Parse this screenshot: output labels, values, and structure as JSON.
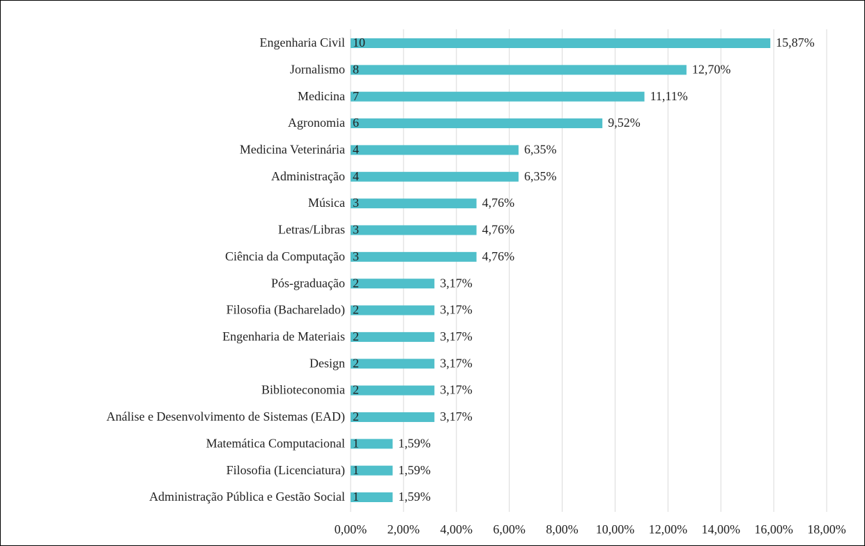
{
  "chart_data": {
    "type": "bar",
    "orientation": "horizontal",
    "categories": [
      "Engenharia Civil",
      "Jornalismo",
      "Medicina",
      "Agronomia",
      "Medicina Veterinária",
      "Administração",
      "Música",
      "Letras/Libras",
      "Ciência da Computação",
      "Pós-graduação",
      "Filosofia (Bacharelado)",
      "Engenharia de Materiais",
      "Design",
      "Biblioteconomia",
      "Análise e Desenvolvimento de Sistemas (EAD)",
      "Matemática Computacional",
      "Filosofia (Licenciatura)",
      "Administração Pública e Gestão Social"
    ],
    "values": [
      15.87,
      12.7,
      11.11,
      9.52,
      6.35,
      6.35,
      4.76,
      4.76,
      4.76,
      3.17,
      3.17,
      3.17,
      3.17,
      3.17,
      3.17,
      1.59,
      1.59,
      1.59
    ],
    "value_labels": [
      "15,87%",
      "12,70%",
      "11,11%",
      "9,52%",
      "6,35%",
      "6,35%",
      "4,76%",
      "4,76%",
      "4,76%",
      "3,17%",
      "3,17%",
      "3,17%",
      "3,17%",
      "3,17%",
      "3,17%",
      "1,59%",
      "1,59%",
      "1,59%"
    ],
    "counts": [
      10,
      8,
      7,
      6,
      4,
      4,
      3,
      3,
      3,
      2,
      2,
      2,
      2,
      2,
      2,
      1,
      1,
      1
    ],
    "color": "#4fbfca",
    "xlim": [
      0,
      18
    ],
    "xticks": [
      {
        "value": 0,
        "label": "0,00%"
      },
      {
        "value": 2,
        "label": "2,00%"
      },
      {
        "value": 4,
        "label": "4,00%"
      },
      {
        "value": 6,
        "label": "6,00%"
      },
      {
        "value": 8,
        "label": "8,00%"
      },
      {
        "value": 10,
        "label": "10,00%"
      },
      {
        "value": 12,
        "label": "12,00%"
      },
      {
        "value": 14,
        "label": "14,00%"
      },
      {
        "value": 16,
        "label": "16,00%"
      },
      {
        "value": 18,
        "label": "18,00%"
      }
    ],
    "grid": true
  }
}
